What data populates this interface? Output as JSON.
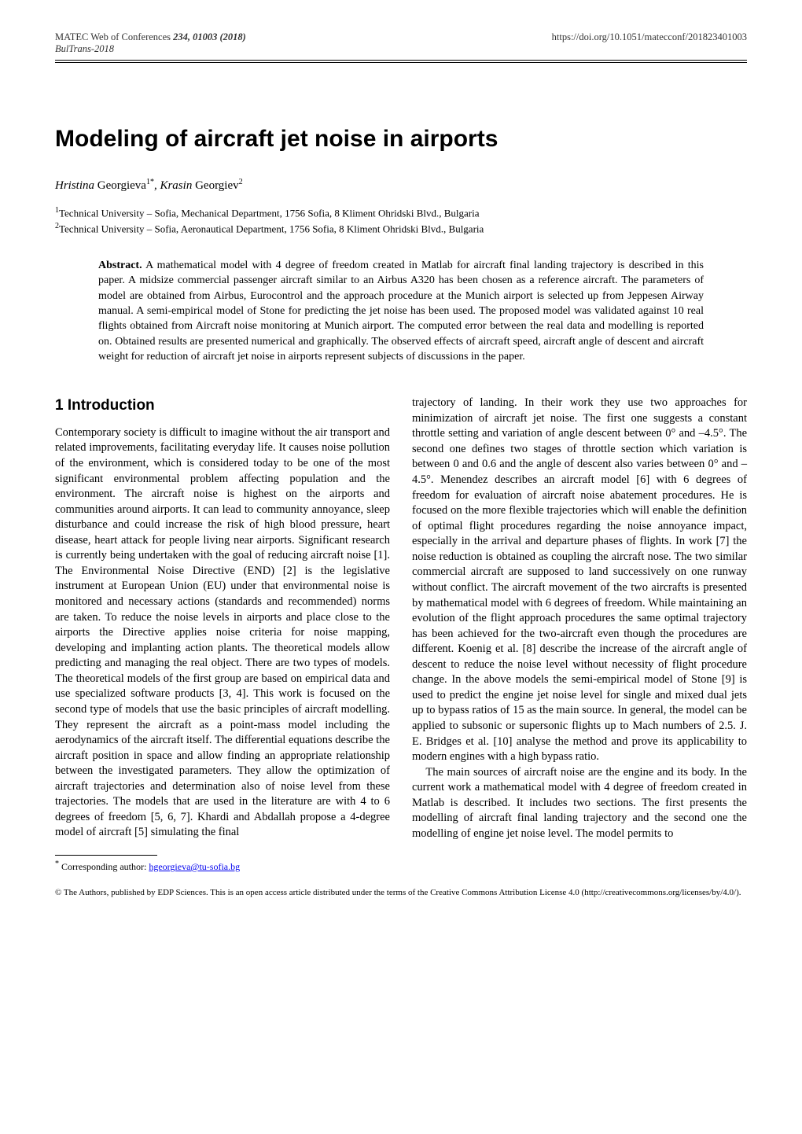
{
  "header": {
    "journal": "MATEC Web of Conferences",
    "volume_issue": "234, 01003 (2018)",
    "conference": "BulTrans-2018",
    "doi": "https://doi.org/10.1051/matecconf/201823401003"
  },
  "title": "Modeling of aircraft jet noise in airports",
  "authors": {
    "a1_first": "Hristina",
    "a1_last": "Georgieva",
    "a1_affil": "1*",
    "sep": ", ",
    "a2_first": "Krasin",
    "a2_last": "Georgiev",
    "a2_affil": "2"
  },
  "affiliations": {
    "line1_sup": "1",
    "line1": "Technical University – Sofia, Mechanical Department, 1756 Sofia, 8 Kliment Ohridski Blvd., Bulgaria",
    "line2_sup": "2",
    "line2": "Technical University – Sofia, Aeronautical Department, 1756 Sofia, 8 Kliment Ohridski Blvd., Bulgaria"
  },
  "abstract": {
    "label": "Abstract.",
    "text": " A mathematical model with 4 degree of freedom created in Matlab for aircraft final landing trajectory is described in this paper. A midsize commercial passenger aircraft similar to an Airbus A320 has been chosen as a reference aircraft. The parameters of model are obtained from Airbus, Eurocontrol and the approach procedure at the Munich airport is selected up from Jeppesen Airway manual. A semi-empirical model of Stone for predicting the jet noise has been used. The proposed model was validated against 10 real flights obtained from Aircraft noise monitoring at Munich airport. The computed error between the real data and modelling is reported on. Obtained results are presented numerical and graphically. The observed effects of aircraft speed, aircraft angle of descent and aircraft weight for reduction of aircraft jet noise in airports represent subjects of discussions in the paper."
  },
  "section1_heading": "1 Introduction",
  "body": {
    "col_left": "Contemporary society is difficult to imagine without the air transport and related improvements, facilitating everyday life. It causes noise pollution of the environment, which is considered today to be one of the most significant environmental problem affecting population and the environment. The aircraft noise is highest on the airports and communities around airports. It can lead to community annoyance, sleep disturbance and could increase the risk of high blood pressure, heart disease, heart attack for people living near airports. Significant research is currently being undertaken with the goal of reducing aircraft noise [1]. The Environmental Noise Directive (END) [2] is the legislative instrument at European Union (EU) under that environmental noise is monitored and necessary actions (standards and recommended) norms are taken. To reduce the noise levels in airports and place close to the airports the Directive applies noise criteria for noise mapping, developing and implanting action plants. The theoretical models allow predicting and managing the real object. There are two types of models. The theoretical models of the first group are based on empirical data and use specialized software products [3, 4]. This work is focused on the second type of models that use the basic principles of aircraft modelling. They represent the aircraft as a point-mass model including the aerodynamics of the aircraft itself. The differential equations describe the aircraft position in space and allow finding an appropriate relationship between the investigated parameters. They allow the optimization of aircraft trajectories and determination also of noise level from these trajectories. The models that are used in the literature are with 4 to 6 degrees of freedom [5, 6, 7]. Khardi and Abdallah propose a 4-degree model of aircraft [5] simulating the final",
    "col_right_p1": "trajectory of landing. In their work they use two approaches for minimization of aircraft jet noise. The first one suggests a constant throttle setting and variation of angle descent between 0° and –4.5°. The second one defines two stages of throttle section which variation is between 0 and 0.6 and the angle of descent also varies between 0° and –4.5°. Menendez describes an aircraft model [6] with 6 degrees of freedom for evaluation of aircraft noise abatement procedures. He is focused on the more flexible trajectories which will enable the definition of optimal flight procedures regarding the noise annoyance impact, especially in the arrival and departure phases of flights. In work [7] the noise reduction is obtained as coupling the aircraft nose. The two similar commercial aircraft are supposed to land successively on one runway without conflict. The aircraft movement of the two aircrafts is presented by mathematical model with 6 degrees of freedom. While maintaining an evolution of the flight approach procedures the same optimal trajectory has been achieved for the two-aircraft even though the procedures are different. Koenig et al. [8] describe the increase of the aircraft angle of descent to reduce the noise level without necessity of flight procedure change. In the above models the semi-empirical model of Stone [9] is used to predict the engine jet noise level for single and mixed dual jets up to bypass ratios of 15 as the main source. In general, the model can be applied to subsonic or supersonic flights up to Mach numbers of 2.5. J. E. Bridges et al. [10] analyse the method and prove its applicability to modern engines with a high bypass ratio.",
    "col_right_p2": "The main sources of aircraft noise are the engine and its body. In the current work a mathematical model with 4 degree of freedom created in Matlab is described. It includes two sections. The first presents the modelling of aircraft final landing trajectory and the second one the modelling of engine jet noise level. The model permits to"
  },
  "footnote": {
    "marker": "*",
    "text": " Corresponding author: ",
    "email": "hgeorgieva@tu-sofia.bg"
  },
  "license": "© The Authors, published by EDP Sciences. This is an open access article distributed under the terms of the Creative Commons Attribution License 4.0 (http://creativecommons.org/licenses/by/4.0/)."
}
